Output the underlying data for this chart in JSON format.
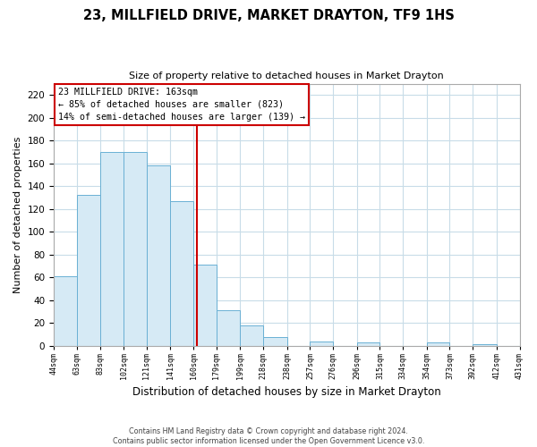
{
  "title": "23, MILLFIELD DRIVE, MARKET DRAYTON, TF9 1HS",
  "subtitle": "Size of property relative to detached houses in Market Drayton",
  "xlabel": "Distribution of detached houses by size in Market Drayton",
  "ylabel": "Number of detached properties",
  "bar_left_edges": [
    44,
    63,
    83,
    102,
    121,
    141,
    160,
    179,
    199,
    218,
    238,
    257,
    276,
    296,
    315,
    334,
    354,
    373,
    392,
    412
  ],
  "bar_widths": [
    19,
    20,
    19,
    19,
    20,
    19,
    19,
    20,
    19,
    20,
    19,
    19,
    20,
    19,
    19,
    20,
    19,
    19,
    20,
    19
  ],
  "bar_heights": [
    61,
    132,
    170,
    170,
    158,
    127,
    71,
    31,
    18,
    8,
    0,
    4,
    0,
    3,
    0,
    0,
    3,
    0,
    1,
    0
  ],
  "tick_labels": [
    "44sqm",
    "63sqm",
    "83sqm",
    "102sqm",
    "121sqm",
    "141sqm",
    "160sqm",
    "179sqm",
    "199sqm",
    "218sqm",
    "238sqm",
    "257sqm",
    "276sqm",
    "296sqm",
    "315sqm",
    "334sqm",
    "354sqm",
    "373sqm",
    "392sqm",
    "412sqm",
    "431sqm"
  ],
  "bar_color": "#d6eaf5",
  "bar_edge_color": "#6ab0d4",
  "vline_x": 163,
  "vline_color": "#cc0000",
  "ylim": [
    0,
    230
  ],
  "yticks": [
    0,
    20,
    40,
    60,
    80,
    100,
    120,
    140,
    160,
    180,
    200,
    220
  ],
  "annotation_title": "23 MILLFIELD DRIVE: 163sqm",
  "annotation_line1": "← 85% of detached houses are smaller (823)",
  "annotation_line2": "14% of semi-detached houses are larger (139) →",
  "annotation_box_color": "#ffffff",
  "annotation_box_edge_color": "#cc0000",
  "footer_line1": "Contains HM Land Registry data © Crown copyright and database right 2024.",
  "footer_line2": "Contains public sector information licensed under the Open Government Licence v3.0.",
  "bg_color": "#ffffff",
  "grid_color": "#c8dce8"
}
